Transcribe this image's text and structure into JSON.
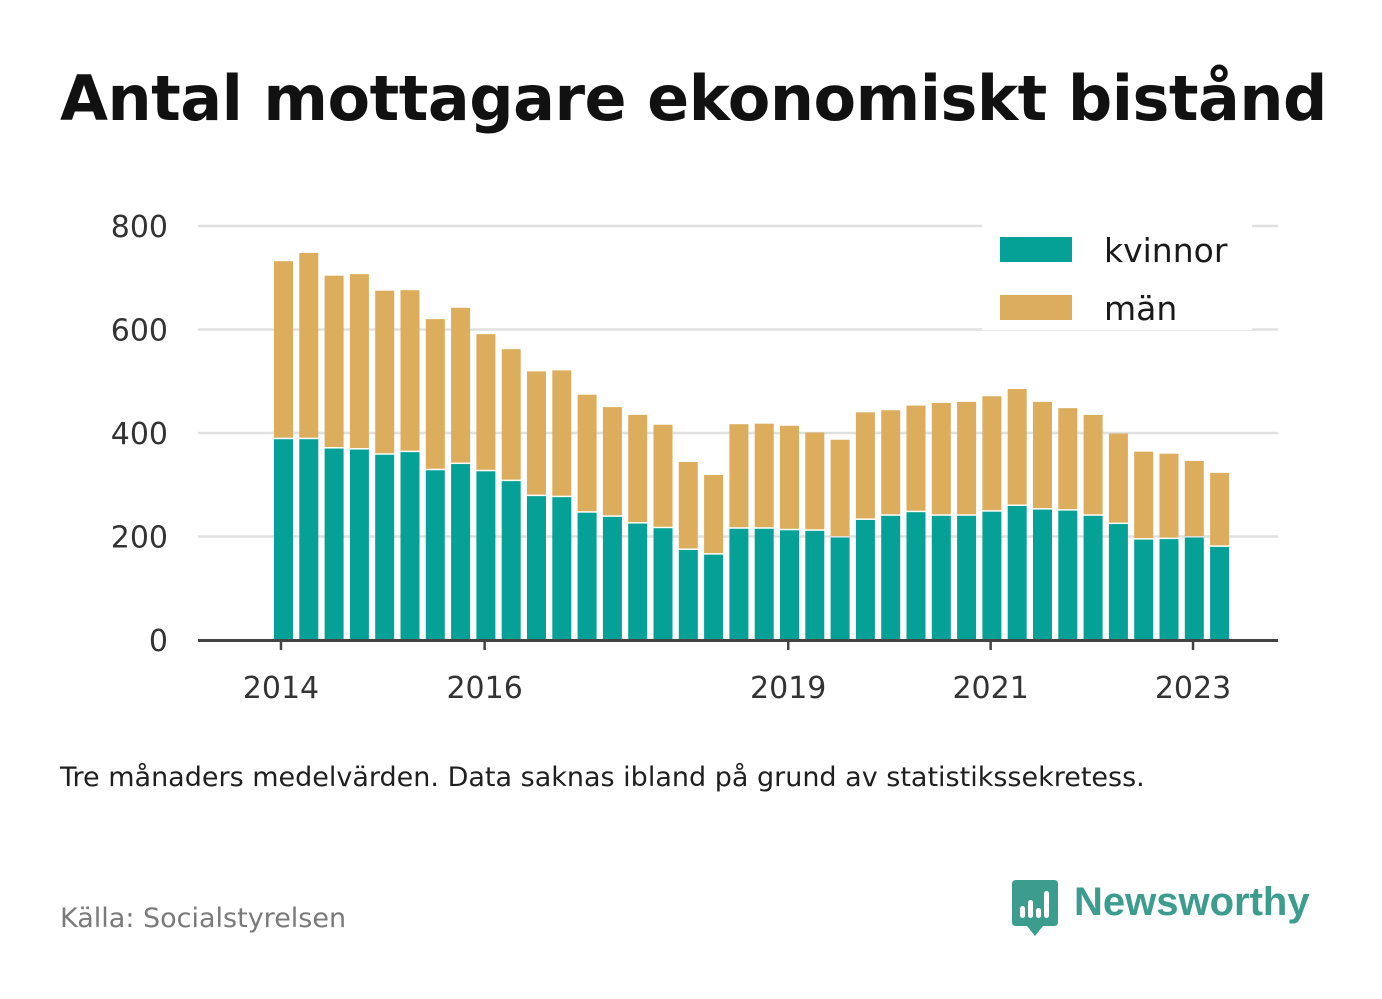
{
  "title": "Antal mottagare ekonomiskt bistånd",
  "note": "Tre månaders medelvärden. Data saknas ibland på grund av statistikssekretess.",
  "source": "Källa: Socialstyrelsen",
  "brand": {
    "name": "Newsworthy",
    "icon": "newsworthy-logo-icon",
    "color": "#3c9c8e"
  },
  "chart_data": {
    "type": "bar",
    "stacked": true,
    "ylim": [
      0,
      800
    ],
    "yticks": [
      0,
      200,
      400,
      600,
      800
    ],
    "xticks": [
      {
        "label": "2014",
        "index": -0.1
      },
      {
        "label": "2016",
        "index": 7.95
      },
      {
        "label": "2019",
        "index": 19.95
      },
      {
        "label": "2021",
        "index": 27.95
      },
      {
        "label": "2023",
        "index": 35.95
      }
    ],
    "grid": true,
    "legend_position": "top-right",
    "series": [
      {
        "name": "kvinnor",
        "color": "#06a196",
        "values": [
          388,
          388,
          370,
          368,
          358,
          363,
          328,
          340,
          326,
          307,
          278,
          276,
          246,
          238,
          225,
          216,
          174,
          165,
          215,
          215,
          212,
          211,
          198,
          232,
          240,
          247,
          240,
          240,
          248,
          259,
          252,
          250,
          240,
          224,
          194,
          195,
          198,
          180
        ]
      },
      {
        "name": "män",
        "color": "#dbad5c",
        "values": [
          344,
          360,
          334,
          339,
          317,
          313,
          292,
          302,
          265,
          255,
          241,
          245,
          228,
          212,
          210,
          200,
          170,
          154,
          202,
          203,
          202,
          190,
          189,
          208,
          204,
          206,
          218,
          220,
          223,
          226,
          208,
          198,
          195,
          175,
          170,
          165,
          148,
          143
        ]
      }
    ]
  }
}
